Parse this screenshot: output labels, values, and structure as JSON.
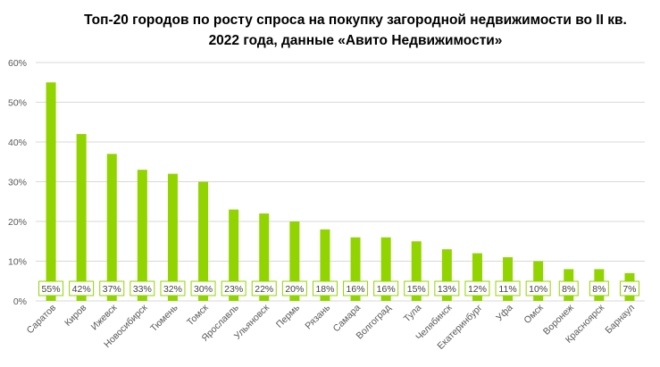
{
  "chart_data": {
    "type": "bar",
    "title": "Топ-20 городов по росту спроса на покупку загородной недвижимости во II кв. 2022 года, данные «Авито Недвижимости»",
    "title_lines": [
      "Топ-20 городов по росту спроса на покупку загородной недвижимости во II кв.",
      "2022 года, данные «Авито Недвижимости»"
    ],
    "categories": [
      "Саратов",
      "Киров",
      "Ижевск",
      "Новосибирск",
      "Тюмень",
      "Томск",
      "Ярославль",
      "Ульяновск",
      "Пермь",
      "Рязань",
      "Самара",
      "Волгоград",
      "Тула",
      "Челябинск",
      "Екатеринбург",
      "Уфа",
      "Омск",
      "Воронеж",
      "Красноярск",
      "Барнаул"
    ],
    "values": [
      55,
      42,
      37,
      33,
      32,
      30,
      23,
      22,
      20,
      18,
      16,
      16,
      15,
      13,
      12,
      11,
      10,
      8,
      8,
      7
    ],
    "data_labels": [
      "55%",
      "42%",
      "37%",
      "33%",
      "32%",
      "30%",
      "23%",
      "22%",
      "20%",
      "18%",
      "16%",
      "16%",
      "15%",
      "13%",
      "12%",
      "11%",
      "10%",
      "8%",
      "8%",
      "7%"
    ],
    "y_ticks": [
      0,
      10,
      20,
      30,
      40,
      50,
      60
    ],
    "y_tick_labels": [
      "0%",
      "10%",
      "20%",
      "30%",
      "40%",
      "50%",
      "60%"
    ],
    "ylim": [
      0,
      60
    ],
    "xlabel": "",
    "ylabel": "",
    "grid": true,
    "bar_color": "#92D400",
    "grid_color": "#D9D9D9"
  }
}
